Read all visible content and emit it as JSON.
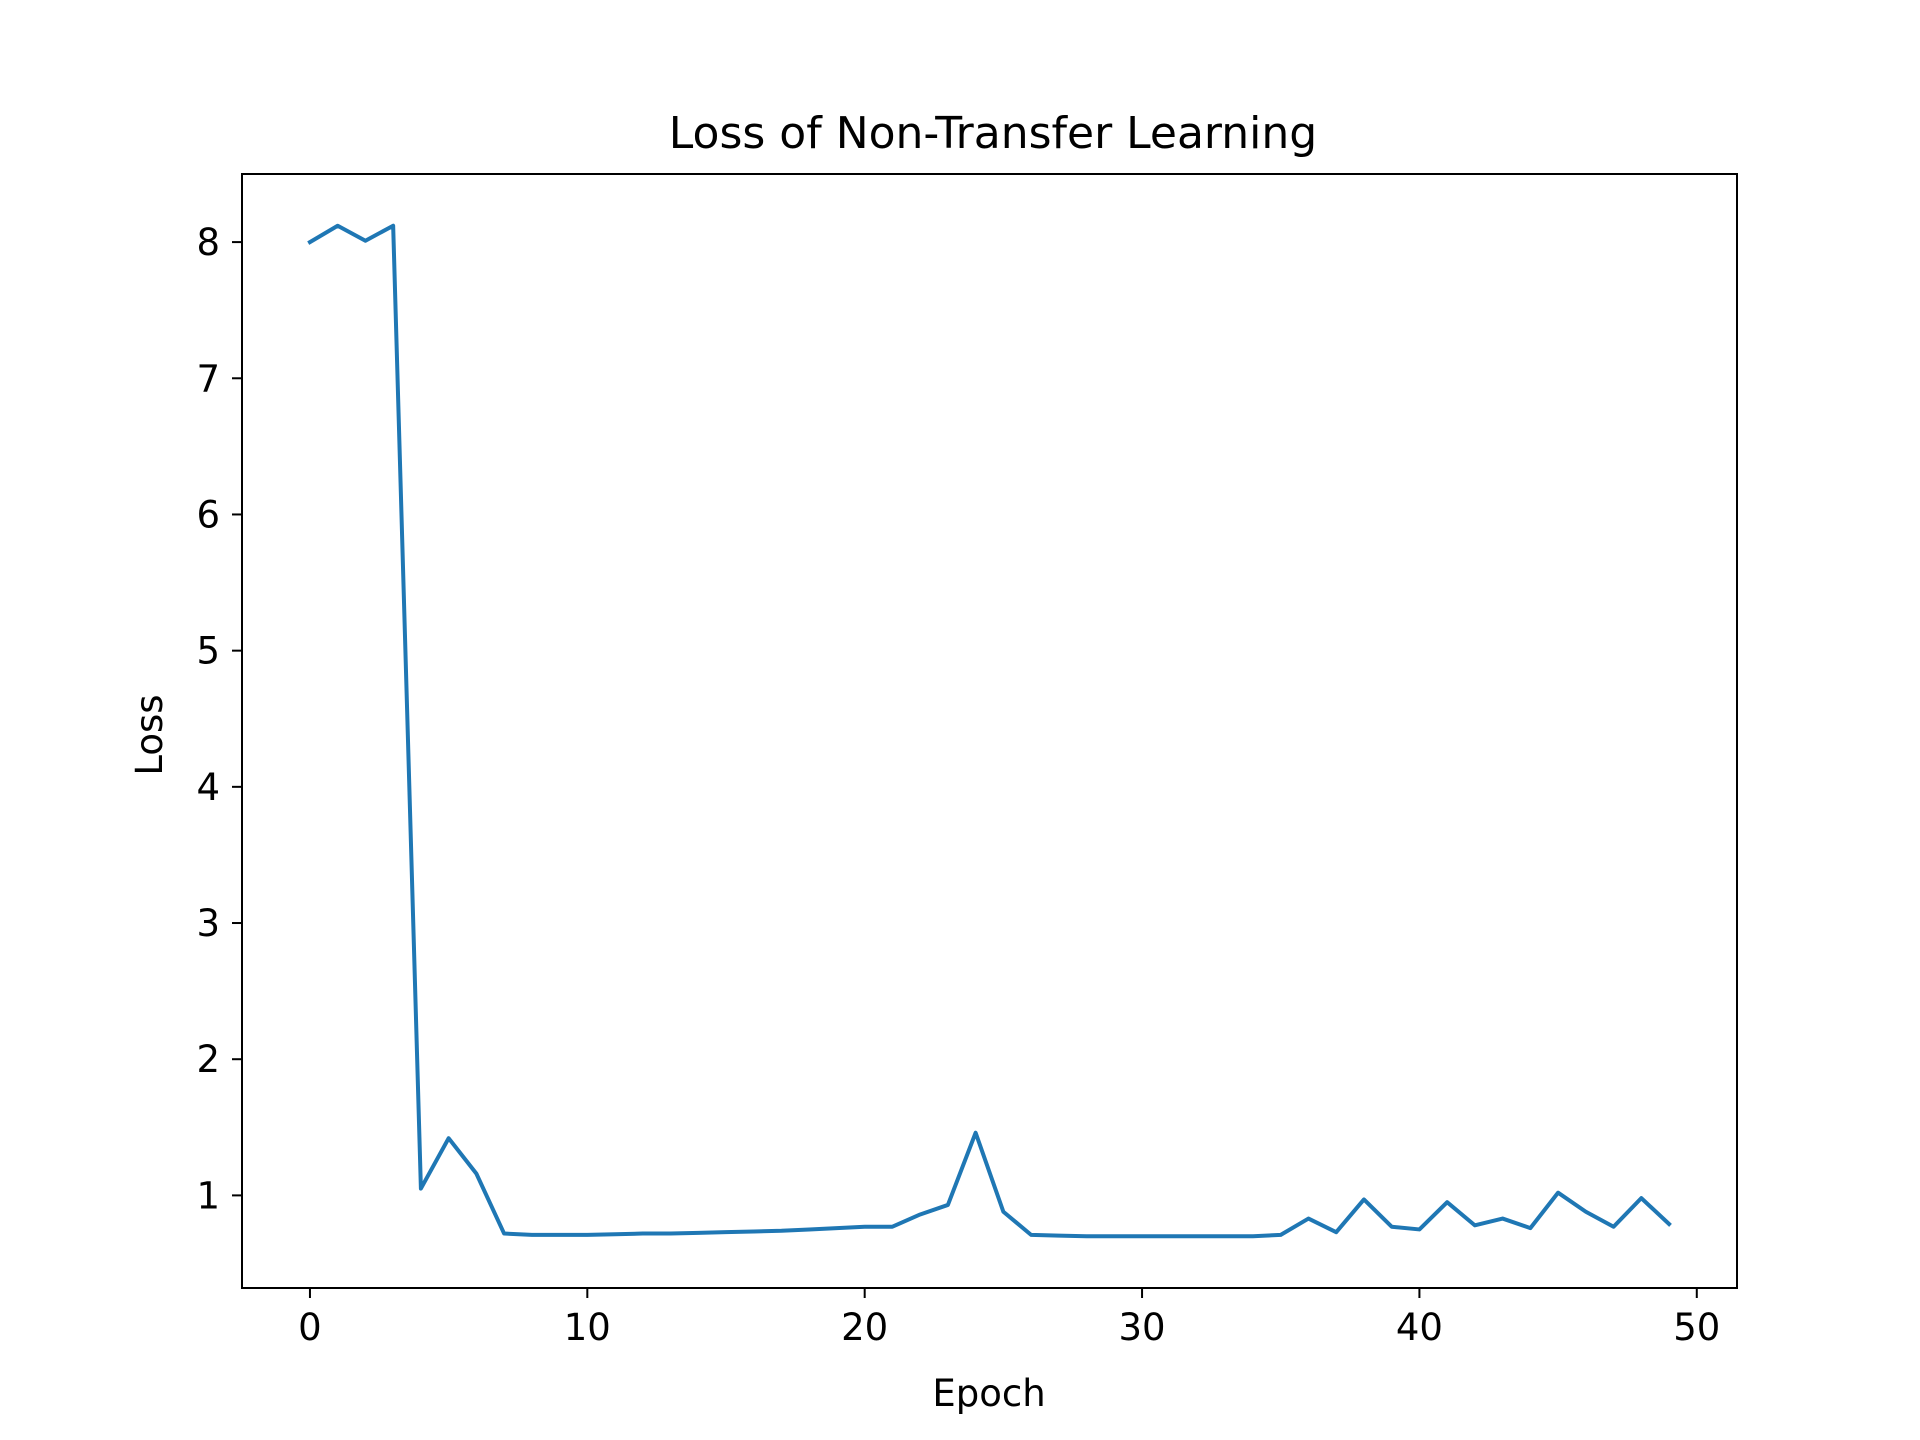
{
  "chart_data": {
    "type": "line",
    "title": "Loss of Non-Transfer Learning",
    "xlabel": "Epoch",
    "ylabel": "Loss",
    "xlim": [
      -2.45,
      51.45
    ],
    "ylim": [
      0.32,
      8.5
    ],
    "xticks": [
      0,
      10,
      20,
      30,
      40,
      50
    ],
    "yticks": [
      1,
      2,
      3,
      4,
      5,
      6,
      7,
      8
    ],
    "xtick_labels": [
      "0",
      "10",
      "20",
      "30",
      "40",
      "50"
    ],
    "ytick_labels": [
      "1",
      "2",
      "3",
      "4",
      "5",
      "6",
      "7",
      "8"
    ],
    "grid": false,
    "line_color": "#1f77b4",
    "series": [
      {
        "x": [
          0,
          1,
          2,
          3,
          4,
          5,
          6,
          7,
          8,
          9,
          10,
          11,
          12,
          13,
          14,
          15,
          16,
          17,
          18,
          19,
          20,
          21,
          22,
          23,
          24,
          25,
          26,
          27,
          28,
          29,
          30,
          31,
          32,
          33,
          34,
          35,
          36,
          37,
          38,
          39,
          40,
          41,
          42,
          43,
          44,
          45,
          46,
          47,
          48,
          49
        ],
        "values": [
          8.0,
          8.12,
          8.01,
          8.12,
          1.05,
          1.42,
          1.16,
          0.72,
          0.71,
          0.71,
          0.71,
          0.715,
          0.72,
          0.72,
          0.725,
          0.73,
          0.735,
          0.74,
          0.75,
          0.76,
          0.77,
          0.77,
          0.86,
          0.93,
          1.46,
          0.88,
          0.71,
          0.705,
          0.7,
          0.7,
          0.7,
          0.7,
          0.7,
          0.7,
          0.7,
          0.71,
          0.83,
          0.73,
          0.97,
          0.77,
          0.75,
          0.95,
          0.78,
          0.83,
          0.76,
          1.02,
          0.88,
          0.77,
          0.98,
          0.79
        ]
      }
    ]
  }
}
